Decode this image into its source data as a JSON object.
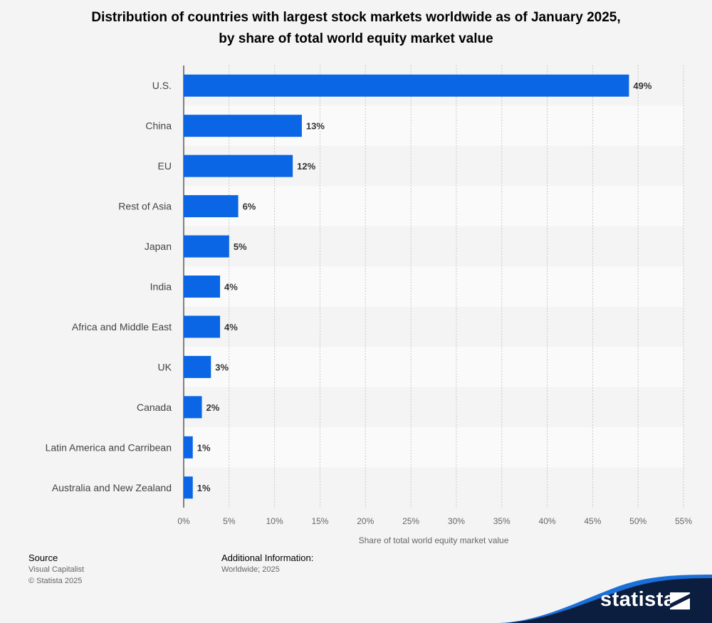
{
  "chart_data": {
    "type": "bar",
    "orientation": "horizontal",
    "title_line1": "Distribution of countries with largest stock markets worldwide as of January 2025,",
    "title_line2": "by share of total world equity market value",
    "xlabel": "Share of total world equity market value",
    "ylabel": "",
    "xlim": [
      0,
      55
    ],
    "ticks": [
      "0%",
      "5%",
      "10%",
      "15%",
      "20%",
      "25%",
      "30%",
      "35%",
      "40%",
      "45%",
      "50%",
      "55%"
    ],
    "categories": [
      "U.S.",
      "China",
      "EU",
      "Rest of Asia",
      "Japan",
      "India",
      "Africa and Middle East",
      "UK",
      "Canada",
      "Latin America and Carribean",
      "Australia and New Zealand"
    ],
    "values": [
      49,
      13,
      12,
      6,
      5,
      4,
      4,
      3,
      2,
      1,
      1
    ],
    "labels": [
      "49%",
      "13%",
      "12%",
      "6%",
      "5%",
      "4%",
      "4%",
      "3%",
      "2%",
      "1%",
      "1%"
    ],
    "bar_color": "#0a66e4",
    "grid": true
  },
  "footer": {
    "source_label": "Source",
    "source_line1": "Visual Capitalist",
    "source_line2": "© Statista 2025",
    "info_label": "Additional Information:",
    "info_line1": "Worldwide; 2025"
  },
  "brand": {
    "name": "statista",
    "color": "#0b1e3f",
    "accent": "#1a6fd8"
  }
}
